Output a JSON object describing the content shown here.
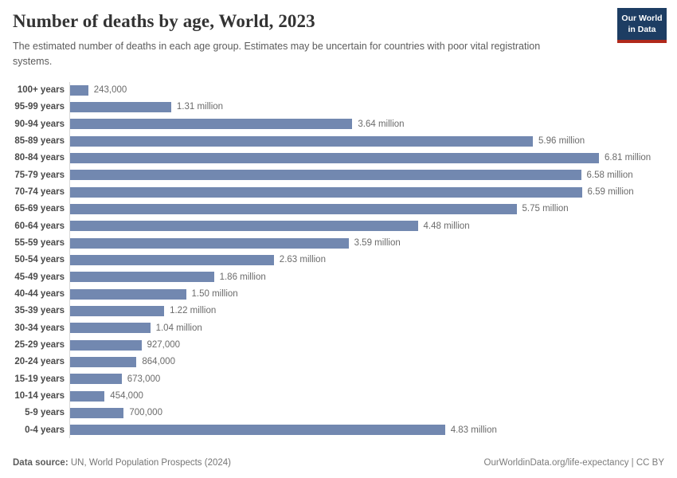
{
  "header": {
    "title": "Number of deaths by age, World, 2023",
    "subtitle": "The estimated number of deaths in each age group. Estimates may be uncertain for countries with poor vital registration systems.",
    "logo": {
      "line1": "Our World",
      "line2": "in Data",
      "bg_color": "#1d3d63",
      "accent_color": "#b0291c"
    }
  },
  "chart_data": {
    "type": "bar",
    "orientation": "horizontal",
    "title": "Number of deaths by age, World, 2023",
    "xlabel": "",
    "ylabel": "",
    "xlim": [
      0,
      6810000
    ],
    "grid": false,
    "legend": false,
    "bar_color": "#7288b0",
    "categories": [
      "100+ years",
      "95-99 years",
      "90-94 years",
      "85-89 years",
      "80-84 years",
      "75-79 years",
      "70-74 years",
      "65-69 years",
      "60-64 years",
      "55-59 years",
      "50-54 years",
      "45-49 years",
      "40-44 years",
      "35-39 years",
      "30-34 years",
      "25-29 years",
      "20-24 years",
      "15-19 years",
      "10-14 years",
      "5-9 years",
      "0-4 years"
    ],
    "values": [
      243000,
      1310000,
      3640000,
      5960000,
      6810000,
      6580000,
      6590000,
      5750000,
      4480000,
      3590000,
      2630000,
      1860000,
      1500000,
      1220000,
      1040000,
      927000,
      864000,
      673000,
      454000,
      700000,
      4830000
    ],
    "value_labels": [
      "243,000",
      "1.31 million",
      "3.64 million",
      "5.96 million",
      "6.81 million",
      "6.58 million",
      "6.59 million",
      "5.75 million",
      "4.48 million",
      "3.59 million",
      "2.63 million",
      "1.86 million",
      "1.50 million",
      "1.22 million",
      "1.04 million",
      "927,000",
      "864,000",
      "673,000",
      "454,000",
      "700,000",
      "4.83 million"
    ]
  },
  "footer": {
    "datasource_label": "Data source:",
    "datasource_value": " UN, World Population Prospects (2024)",
    "credit": "OurWorldinData.org/life-expectancy | CC BY"
  }
}
